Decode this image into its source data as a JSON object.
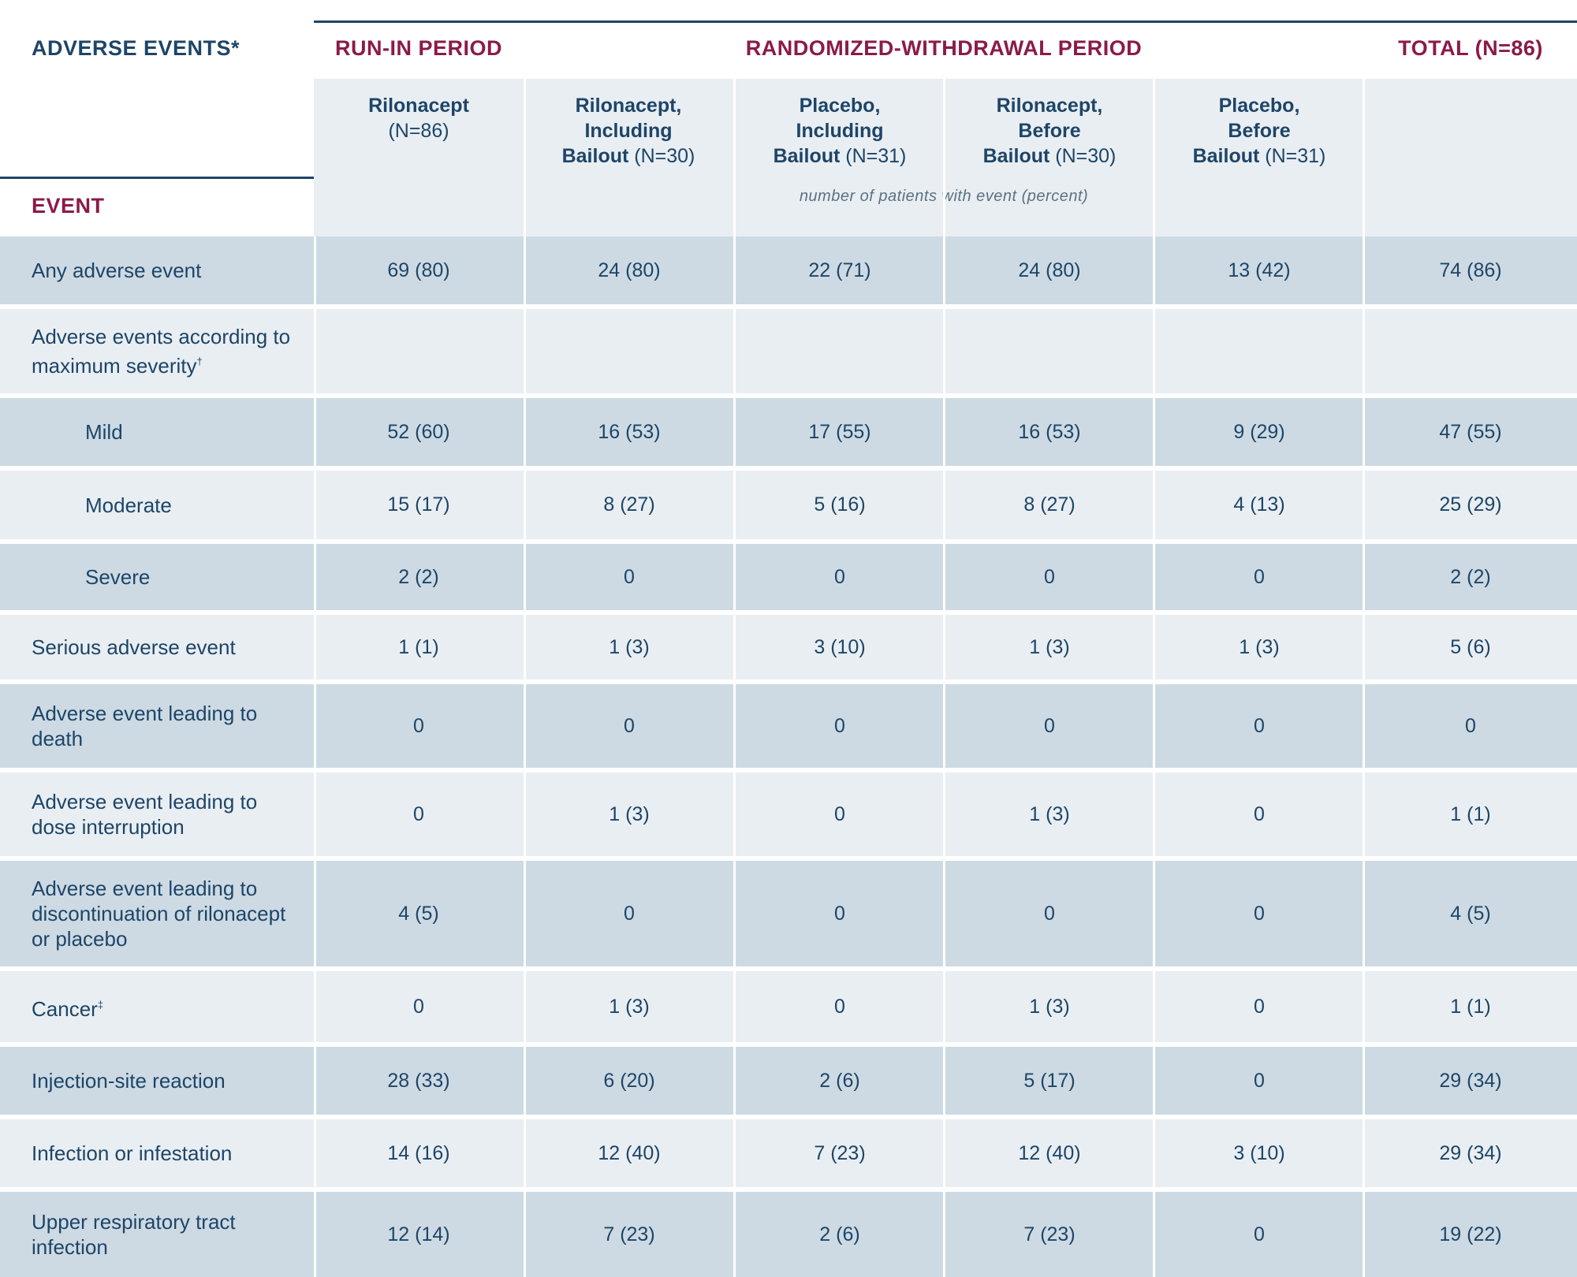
{
  "header": {
    "corner_title": "ADVERSE EVENTS*",
    "event_label": "EVENT",
    "runin_title": "RUN-IN PERIOD",
    "rw_title": "RANDOMIZED-WITHDRAWAL PERIOD",
    "total_title": "TOTAL (N=86)",
    "units_note": "number of patients with event (percent)"
  },
  "columns": [
    {
      "title": "Rilonacept",
      "n": "(N=86)"
    },
    {
      "title_lines": [
        "Rilonacept,",
        "Including"
      ],
      "title_last": "Bailout",
      "n": "(N=30)"
    },
    {
      "title_lines": [
        "Placebo,",
        "Including"
      ],
      "title_last": "Bailout",
      "n": "(N=31)"
    },
    {
      "title_lines": [
        "Rilonacept,",
        "Before"
      ],
      "title_last": "Bailout",
      "n": "(N=30)"
    },
    {
      "title_lines": [
        "Placebo,",
        "Before"
      ],
      "title_last": "Bailout",
      "n": "(N=31)"
    }
  ],
  "rows": [
    {
      "label": "Any adverse event",
      "values": [
        "69 (80)",
        "24 (80)",
        "22 (71)",
        "24 (80)",
        "13 (42)",
        "74 (86)"
      ]
    },
    {
      "label": "Adverse events according to maximum severity",
      "sup": "†",
      "values": [
        "",
        "",
        "",
        "",
        "",
        ""
      ]
    },
    {
      "label": "Mild",
      "values": [
        "52 (60)",
        "16 (53)",
        "17 (55)",
        "16 (53)",
        "9 (29)",
        "47 (55)"
      ]
    },
    {
      "label": "Moderate",
      "values": [
        "15 (17)",
        "8 (27)",
        "5 (16)",
        "8 (27)",
        "4 (13)",
        "25 (29)"
      ]
    },
    {
      "label": "Severe",
      "values": [
        "2 (2)",
        "0",
        "0",
        "0",
        "0",
        "2 (2)"
      ]
    },
    {
      "label": "Serious adverse event",
      "values": [
        "1 (1)",
        "1 (3)",
        "3 (10)",
        "1 (3)",
        "1 (3)",
        "5 (6)"
      ]
    },
    {
      "label": "Adverse event leading to death",
      "values": [
        "0",
        "0",
        "0",
        "0",
        "0",
        "0"
      ]
    },
    {
      "label": "Adverse event leading to dose interruption",
      "values": [
        "0",
        "1 (3)",
        "0",
        "1 (3)",
        "0",
        "1 (1)"
      ]
    },
    {
      "label": "Adverse event leading to discontinuation of rilonacept or placebo",
      "values": [
        "4 (5)",
        "0",
        "0",
        "0",
        "0",
        "4 (5)"
      ]
    },
    {
      "label": "Cancer",
      "sup": "‡",
      "values": [
        "0",
        "1 (3)",
        "0",
        "1 (3)",
        "0",
        "1 (1)"
      ]
    },
    {
      "label": "Injection-site reaction",
      "values": [
        "28 (33)",
        "6 (20)",
        "2 (6)",
        "5 (17)",
        "0",
        "29 (34)"
      ]
    },
    {
      "label": "Infection or infestation",
      "values": [
        "14 (16)",
        "12 (40)",
        "7 (23)",
        "12 (40)",
        "3 (10)",
        "29 (34)"
      ]
    },
    {
      "label": "Upper respiratory tract infection",
      "values": [
        "12 (14)",
        "7 (23)",
        "2 (6)",
        "7 (23)",
        "0",
        "19 (22)"
      ]
    }
  ]
}
